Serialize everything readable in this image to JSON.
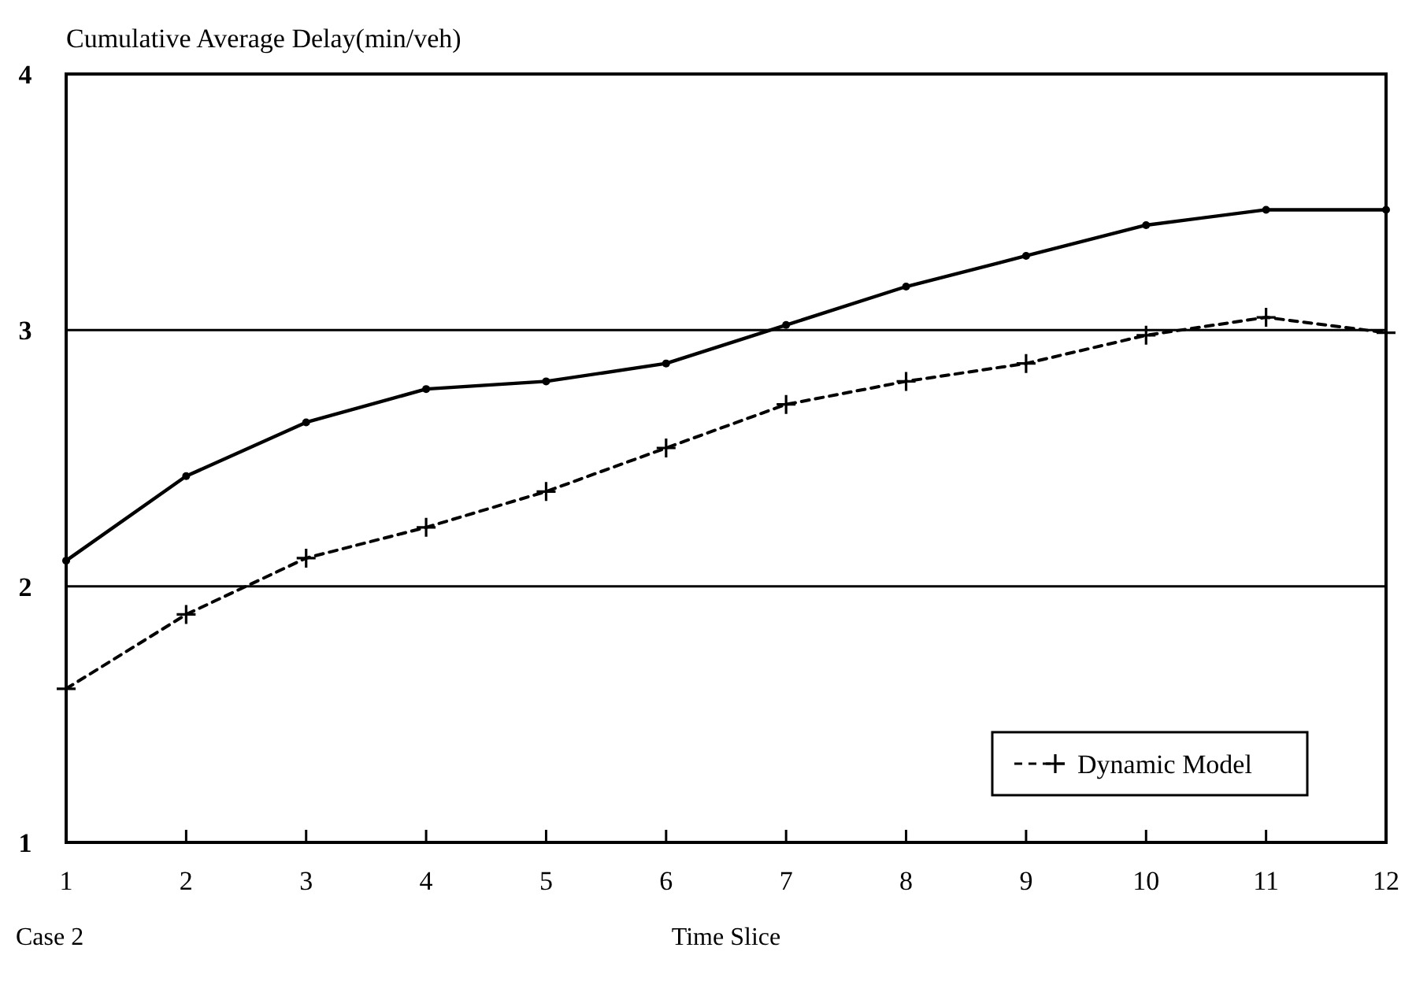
{
  "chart_data": {
    "type": "line",
    "ylabel": "Cumulative Average Delay(min/veh)",
    "xlabel": "Time Slice",
    "annotations": [
      "Case 2"
    ],
    "x": [
      1,
      2,
      3,
      4,
      5,
      6,
      7,
      8,
      9,
      10,
      11,
      12
    ],
    "xlim": [
      1,
      12
    ],
    "xticks": [
      1,
      2,
      3,
      4,
      5,
      6,
      7,
      8,
      9,
      10,
      11,
      12
    ],
    "ylim": [
      1,
      4
    ],
    "yticks": [
      1,
      2,
      3,
      4
    ],
    "grid": "y",
    "legend": "bottom right",
    "series": [
      {
        "color": "#000000",
        "marker": "circle",
        "line_style": "solid",
        "values": [
          2.1,
          2.43,
          2.64,
          2.77,
          2.8,
          2.87,
          3.02,
          3.17,
          3.29,
          3.41,
          3.47,
          3.47
        ]
      },
      {
        "name": "Dynamic Model",
        "color": "#000000",
        "marker": "cross",
        "line_style": "dashed",
        "values": [
          1.6,
          1.89,
          2.11,
          2.23,
          2.37,
          2.54,
          2.71,
          2.8,
          2.87,
          2.98,
          3.05,
          2.99
        ]
      }
    ]
  }
}
